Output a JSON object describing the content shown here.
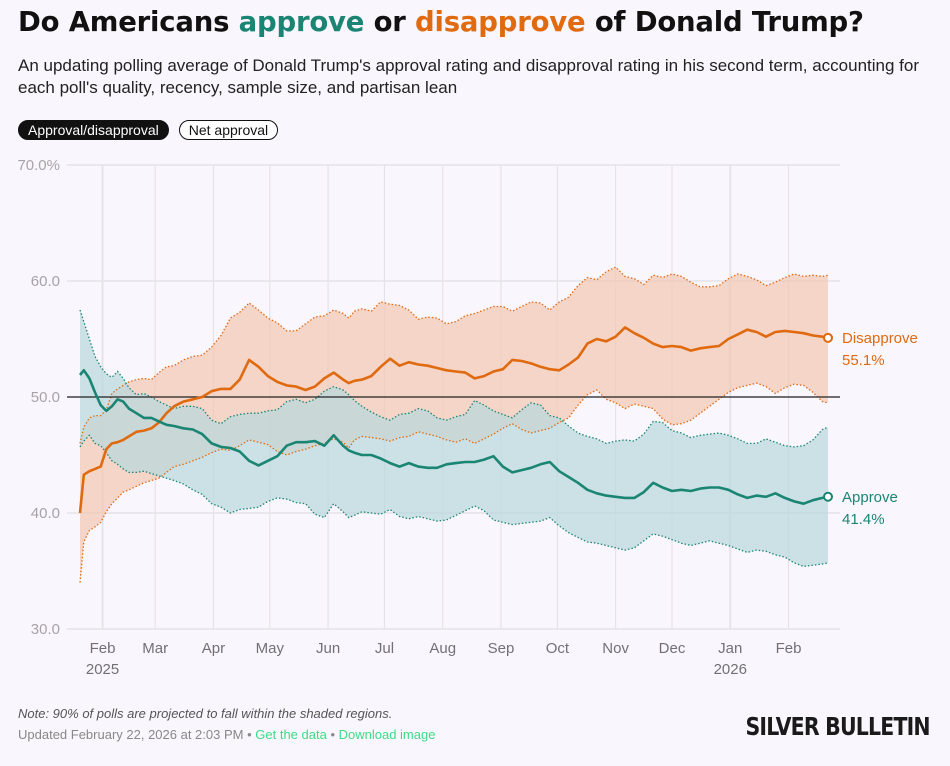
{
  "header": {
    "title_prefix": "Do Americans ",
    "title_approve": "approve",
    "title_mid": " or ",
    "title_disapprove": "disapprove",
    "title_suffix": " of Donald Trump?",
    "subtitle": "An updating polling average of Donald Trump's approval rating and disapproval rating in his second term, accounting for each poll's quality, recency, sample size, and partisan lean"
  },
  "toggles": [
    {
      "label": "Approval/disapproval",
      "active": true
    },
    {
      "label": "Net approval",
      "active": false
    }
  ],
  "footer": {
    "note": "Note: 90% of polls are projected to fall within the shaded regions.",
    "updated": "Updated February 22, 2026 at 2:03 PM",
    "separator": " • ",
    "get_data": "Get the data",
    "download": "Download image",
    "logo": "SILVER BULLETIN"
  },
  "colors": {
    "approve": "#1b8574",
    "disapprove": "#e06a0f",
    "approve_band": "#b9d8dc",
    "disapprove_band": "#f3c8b3",
    "link": "#3ddc84"
  },
  "chart_data": {
    "type": "line",
    "title": "Do Americans approve or disapprove of Donald Trump?",
    "xlabel": "",
    "ylabel": "",
    "ylim": [
      30,
      70
    ],
    "yticks": [
      30,
      40,
      50,
      60,
      70
    ],
    "ytick_labels": [
      "30.0",
      "40.0",
      "50.0",
      "60.0",
      "70.0%"
    ],
    "reference_line": 50,
    "grid": true,
    "x_range": [
      "2025-01-20",
      "2026-02-22"
    ],
    "xticks": [
      {
        "date": "2025-02-01",
        "label": "Feb",
        "year": "2025"
      },
      {
        "date": "2025-03-01",
        "label": "Mar"
      },
      {
        "date": "2025-04-01",
        "label": "Apr"
      },
      {
        "date": "2025-05-01",
        "label": "May"
      },
      {
        "date": "2025-06-01",
        "label": "Jun"
      },
      {
        "date": "2025-07-01",
        "label": "Jul"
      },
      {
        "date": "2025-08-01",
        "label": "Aug"
      },
      {
        "date": "2025-09-01",
        "label": "Sep"
      },
      {
        "date": "2025-10-01",
        "label": "Oct"
      },
      {
        "date": "2025-11-01",
        "label": "Nov"
      },
      {
        "date": "2025-12-01",
        "label": "Dec"
      },
      {
        "date": "2026-01-01",
        "label": "Jan",
        "year": "2026"
      },
      {
        "date": "2026-02-01",
        "label": "Feb"
      }
    ],
    "day_offsets": [
      0,
      2,
      5,
      8,
      11,
      14,
      17,
      20,
      23,
      26,
      30,
      34,
      38,
      42,
      46,
      50,
      55,
      60,
      65,
      70,
      75,
      80,
      85,
      90,
      95,
      100,
      105,
      110,
      115,
      120,
      125,
      130,
      135,
      140,
      143,
      146,
      150,
      155,
      160,
      165,
      170,
      175,
      180,
      185,
      190,
      195,
      200,
      205,
      210,
      215,
      220,
      225,
      230,
      235,
      240,
      245,
      250,
      255,
      260,
      265,
      270,
      275,
      280,
      285,
      290,
      295,
      300,
      305,
      310,
      315,
      320,
      325,
      330,
      335,
      340,
      345,
      350,
      355,
      360,
      365,
      370,
      375,
      380,
      385,
      390,
      395,
      398
    ],
    "series": [
      {
        "name": "Approve",
        "final_label": "41.4%",
        "values": [
          51.9,
          52.3,
          51.6,
          50.4,
          49.3,
          48.8,
          49.2,
          49.8,
          49.6,
          49.0,
          48.6,
          48.2,
          48.2,
          47.9,
          47.6,
          47.5,
          47.3,
          47.2,
          46.8,
          46.0,
          45.7,
          45.6,
          45.3,
          44.5,
          44.1,
          44.5,
          44.9,
          45.8,
          46.1,
          46.1,
          46.2,
          45.8,
          46.7,
          45.8,
          45.4,
          45.2,
          45.0,
          45.0,
          44.7,
          44.3,
          44.0,
          44.3,
          44.0,
          43.9,
          43.9,
          44.2,
          44.3,
          44.4,
          44.4,
          44.6,
          44.9,
          44.0,
          43.5,
          43.7,
          43.9,
          44.2,
          44.4,
          43.6,
          43.1,
          42.6,
          42.0,
          41.7,
          41.5,
          41.4,
          41.3,
          41.3,
          41.8,
          42.6,
          42.2,
          41.9,
          42.0,
          41.9,
          42.1,
          42.2,
          42.2,
          42.0,
          41.6,
          41.3,
          41.5,
          41.4,
          41.7,
          41.3,
          41.0,
          40.8,
          41.1,
          41.3,
          41.4
        ],
        "upper": [
          57.5,
          56.5,
          55.0,
          53.5,
          52.6,
          52.0,
          51.7,
          52.2,
          51.6,
          50.8,
          50.2,
          50.3,
          50.0,
          49.6,
          49.3,
          49.0,
          49.2,
          49.2,
          49.0,
          48.0,
          47.7,
          48.3,
          48.5,
          48.6,
          48.6,
          48.8,
          48.9,
          49.6,
          49.8,
          49.5,
          49.8,
          50.5,
          50.9,
          50.6,
          50.2,
          49.7,
          49.2,
          48.7,
          48.3,
          48.0,
          48.5,
          48.6,
          49.0,
          48.8,
          48.2,
          48.0,
          48.3,
          48.5,
          49.7,
          49.3,
          48.8,
          48.5,
          48.2,
          48.9,
          49.5,
          49.3,
          48.4,
          48.2,
          47.5,
          46.9,
          46.6,
          46.4,
          46.0,
          46.2,
          46.3,
          46.2,
          46.8,
          47.9,
          47.8,
          47.1,
          46.9,
          46.5,
          46.7,
          46.8,
          46.9,
          46.7,
          46.4,
          46.0,
          46.0,
          46.4,
          46.1,
          45.8,
          45.7,
          45.8,
          46.3,
          47.2,
          47.4
        ],
        "lower": [
          45.7,
          46.2,
          46.7,
          46.0,
          45.8,
          45.2,
          44.5,
          44.2,
          43.8,
          43.5,
          43.5,
          43.6,
          43.4,
          43.2,
          43.0,
          42.8,
          42.5,
          42.0,
          41.6,
          40.8,
          40.5,
          40.0,
          40.3,
          40.4,
          40.5,
          41.0,
          41.3,
          41.2,
          40.9,
          40.8,
          39.9,
          39.6,
          40.8,
          40.1,
          39.6,
          39.8,
          40.1,
          40.0,
          39.9,
          40.3,
          39.7,
          39.5,
          39.7,
          39.5,
          39.3,
          39.4,
          39.8,
          40.2,
          40.6,
          40.2,
          39.4,
          39.2,
          39.0,
          39.1,
          39.2,
          39.3,
          39.6,
          38.9,
          38.3,
          37.9,
          37.5,
          37.4,
          37.2,
          37.0,
          36.8,
          37.0,
          37.6,
          38.2,
          38.0,
          37.7,
          37.4,
          37.2,
          37.4,
          37.6,
          37.4,
          37.2,
          36.9,
          36.6,
          36.8,
          36.7,
          36.4,
          36.2,
          35.7,
          35.4,
          35.5,
          35.6,
          35.7
        ]
      },
      {
        "name": "Disapprove",
        "final_label": "55.1%",
        "values": [
          40.0,
          43.3,
          43.6,
          43.8,
          44.0,
          45.5,
          46.0,
          46.1,
          46.3,
          46.6,
          47.0,
          47.1,
          47.3,
          47.8,
          48.6,
          49.2,
          49.6,
          49.8,
          50.0,
          50.5,
          50.7,
          50.7,
          51.5,
          53.2,
          52.6,
          51.8,
          51.3,
          51.0,
          50.9,
          50.6,
          50.9,
          51.6,
          52.1,
          51.5,
          51.2,
          51.4,
          51.5,
          51.8,
          52.6,
          53.3,
          52.7,
          53.0,
          52.8,
          52.7,
          52.5,
          52.3,
          52.2,
          52.1,
          51.6,
          51.8,
          52.2,
          52.4,
          53.2,
          53.1,
          52.9,
          52.6,
          52.4,
          52.3,
          52.8,
          53.4,
          54.6,
          55.0,
          54.8,
          55.2,
          56.0,
          55.5,
          55.1,
          54.6,
          54.3,
          54.4,
          54.3,
          54.0,
          54.2,
          54.3,
          54.4,
          55.0,
          55.4,
          55.8,
          55.6,
          55.2,
          55.6,
          55.7,
          55.6,
          55.5,
          55.3,
          55.2,
          55.1
        ],
        "upper": [
          46.0,
          47.4,
          48.2,
          48.4,
          48.4,
          48.9,
          50.3,
          50.7,
          51.0,
          51.3,
          51.5,
          51.6,
          51.5,
          52.1,
          52.6,
          52.7,
          53.2,
          53.5,
          53.6,
          54.3,
          55.3,
          56.8,
          57.3,
          58.1,
          57.5,
          56.8,
          56.4,
          55.7,
          55.7,
          56.3,
          56.9,
          57.0,
          57.5,
          57.2,
          56.8,
          57.4,
          57.6,
          57.4,
          58.2,
          58.0,
          57.9,
          57.5,
          56.7,
          56.9,
          56.8,
          56.3,
          56.5,
          57.0,
          57.2,
          57.5,
          57.8,
          57.8,
          57.4,
          57.8,
          58.2,
          58.1,
          57.5,
          58.2,
          58.6,
          59.6,
          60.3,
          60.1,
          60.8,
          61.2,
          60.4,
          60.2,
          59.7,
          60.5,
          60.3,
          60.6,
          60.4,
          59.9,
          59.5,
          59.5,
          59.6,
          60.2,
          60.6,
          60.4,
          60.1,
          59.6,
          59.9,
          60.3,
          60.6,
          60.4,
          60.5,
          60.4,
          60.5
        ],
        "lower": [
          34.0,
          37.5,
          38.5,
          38.8,
          39.2,
          40.1,
          40.8,
          41.3,
          41.8,
          42.0,
          42.3,
          42.6,
          42.8,
          43.0,
          43.5,
          44.0,
          44.2,
          44.5,
          44.8,
          45.2,
          45.5,
          45.4,
          45.8,
          46.3,
          46.1,
          45.9,
          45.3,
          45.0,
          45.3,
          45.5,
          45.8,
          46.0,
          46.4,
          46.1,
          45.6,
          46.3,
          46.6,
          46.5,
          46.4,
          46.2,
          46.5,
          46.6,
          47.0,
          46.8,
          46.6,
          46.3,
          46.1,
          46.4,
          46.0,
          46.4,
          46.8,
          47.3,
          47.7,
          47.2,
          46.9,
          47.1,
          47.3,
          47.8,
          48.2,
          49.3,
          50.2,
          50.6,
          49.8,
          49.5,
          49.0,
          49.4,
          49.2,
          49.0,
          48.1,
          47.6,
          47.7,
          48.0,
          48.6,
          49.2,
          49.8,
          50.4,
          50.8,
          51.0,
          51.2,
          50.9,
          50.3,
          50.8,
          51.1,
          51.0,
          50.4,
          49.6,
          49.5
        ]
      }
    ],
    "legend": "end-labels-right"
  }
}
